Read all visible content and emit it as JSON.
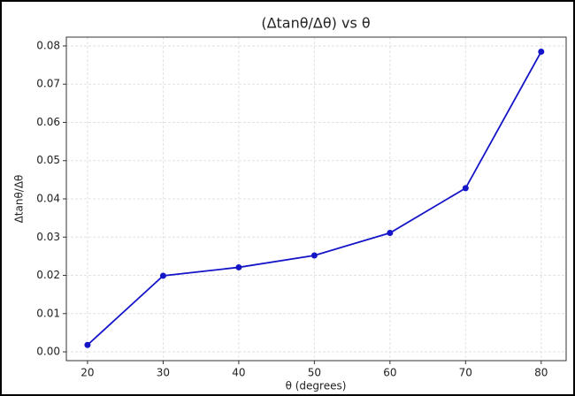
{
  "chart_data": {
    "type": "line",
    "title": "(Δtanθ/Δθ) vs θ",
    "x_label": "θ (degrees)",
    "y_label": "Δtanθ/Δθ",
    "x": [
      20,
      30,
      40,
      50,
      60,
      70,
      80
    ],
    "values": [
      0.0018,
      0.0199,
      0.0221,
      0.0252,
      0.0311,
      0.0428,
      0.0785
    ],
    "color": "#1515c8",
    "xlim": [
      17.2,
      83.3
    ],
    "ylim": [
      -0.0023,
      0.0823
    ],
    "xticks": [
      20,
      30,
      40,
      50,
      60,
      70,
      80
    ],
    "yticks": [
      {
        "value": 0,
        "label": "0.00"
      },
      {
        "value": 0.01,
        "label": "0.01"
      },
      {
        "value": 0.02,
        "label": "0.02"
      },
      {
        "value": 0.03,
        "label": "0.03"
      },
      {
        "value": 0.04,
        "label": "0.04"
      },
      {
        "value": 0.05,
        "label": "0.05"
      },
      {
        "value": 0.06,
        "label": "0.06"
      },
      {
        "value": 0.07,
        "label": "0.07"
      },
      {
        "value": 0.08,
        "label": "0.08"
      }
    ],
    "grid": true
  }
}
